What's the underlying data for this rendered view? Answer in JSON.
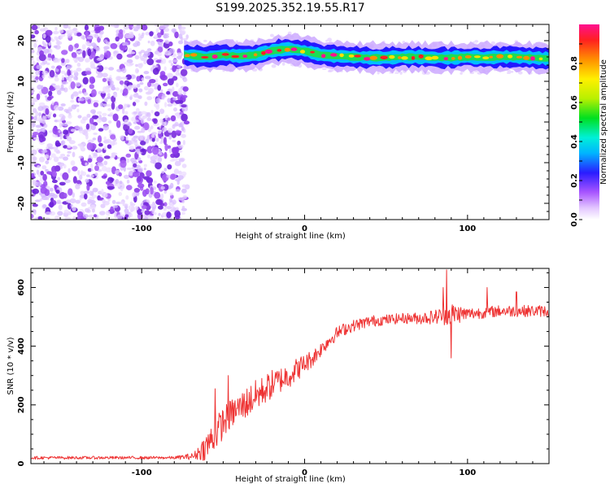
{
  "title": "S199.2025.352.19.55.R17",
  "chart_data": [
    {
      "type": "heatmap",
      "name": "spectrogram",
      "xlabel": "Height of straight line (km)",
      "ylabel": "Frequency (Hz)",
      "xlim": [
        -168,
        150
      ],
      "ylim": [
        -24,
        24
      ],
      "xticks": [
        -100,
        0,
        100
      ],
      "yticks": [
        -20,
        -10,
        0,
        10,
        20
      ],
      "colorbar": {
        "label": "Normalized spectral amplitude",
        "range": [
          0,
          1
        ],
        "ticks": [
          0.0,
          0.2,
          0.4,
          0.6,
          0.8
        ],
        "tick_labels": [
          "0.0",
          "0.2",
          "0.4",
          "0.6",
          "0.8"
        ]
      },
      "noise_region_x": [
        -168,
        -74
      ],
      "signal_ridge": {
        "x": [
          -74,
          -70,
          -60,
          -50,
          -40,
          -30,
          -20,
          -10,
          0,
          10,
          20,
          30,
          40,
          50,
          60,
          70,
          80,
          90,
          100,
          110,
          120,
          130,
          140,
          150
        ],
        "freq": [
          16.5,
          16.3,
          16.0,
          16.5,
          16.2,
          16.5,
          17.5,
          18.0,
          17.5,
          16.5,
          16.2,
          16.0,
          15.8,
          15.8,
          16.0,
          16.0,
          15.8,
          15.8,
          16.0,
          15.8,
          16.0,
          16.0,
          15.8,
          15.6
        ]
      }
    },
    {
      "type": "line",
      "name": "snr",
      "xlabel": "Height of straight line (km)",
      "ylabel": "SNR (10 * v/v)",
      "xlim": [
        -168,
        150
      ],
      "ylim": [
        0,
        665
      ],
      "xticks": [
        -100,
        0,
        100
      ],
      "yticks": [
        0,
        200,
        400,
        600
      ],
      "color": "#ee3333",
      "x": [
        -168,
        -140,
        -110,
        -80,
        -68,
        -60,
        -55,
        -50,
        -45,
        -40,
        -35,
        -30,
        -25,
        -20,
        -15,
        -10,
        -5,
        0,
        5,
        10,
        15,
        20,
        25,
        30,
        40,
        50,
        60,
        70,
        80,
        90,
        100,
        110,
        120,
        130,
        140,
        150
      ],
      "mean": [
        20,
        20,
        20,
        20,
        25,
        60,
        100,
        140,
        170,
        190,
        210,
        230,
        250,
        270,
        285,
        300,
        320,
        340,
        360,
        390,
        420,
        445,
        460,
        470,
        485,
        490,
        495,
        495,
        500,
        510,
        510,
        515,
        520,
        520,
        520,
        520
      ],
      "noise": [
        5,
        5,
        5,
        5,
        12,
        50,
        55,
        55,
        50,
        50,
        55,
        55,
        50,
        50,
        45,
        45,
        40,
        35,
        30,
        25,
        25,
        22,
        22,
        20,
        20,
        18,
        18,
        20,
        25,
        40,
        22,
        20,
        20,
        20,
        20,
        20
      ],
      "spikes": [
        {
          "x": -55,
          "y": 255
        },
        {
          "x": -47,
          "y": 300
        },
        {
          "x": 87,
          "y": 660
        },
        {
          "x": 85,
          "y": 600
        },
        {
          "x": 90,
          "y": 360
        },
        {
          "x": 112,
          "y": 600
        },
        {
          "x": 130,
          "y": 585
        }
      ]
    }
  ]
}
